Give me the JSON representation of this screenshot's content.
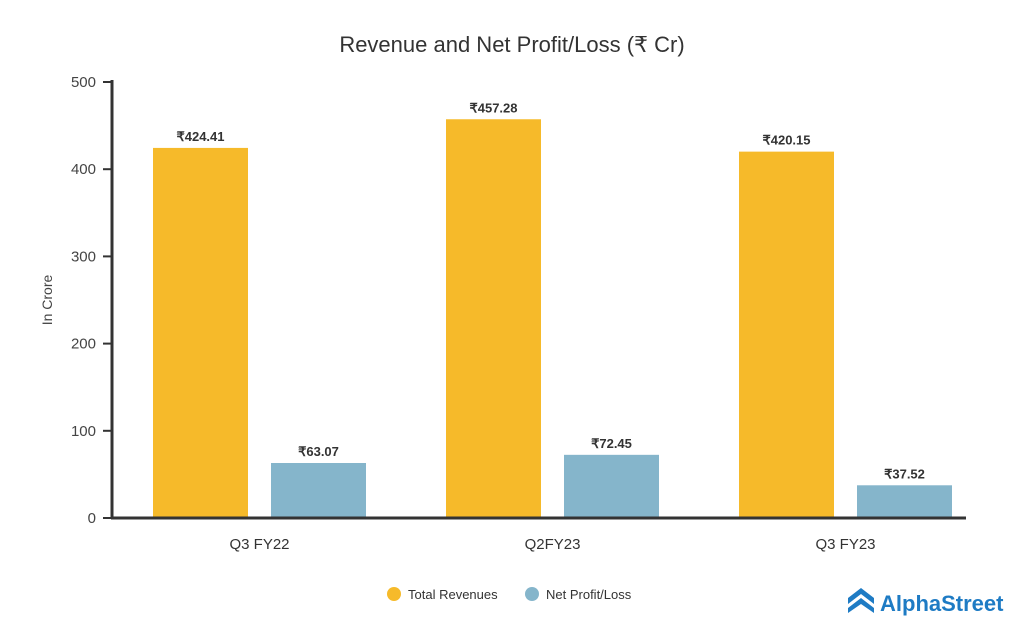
{
  "chart_data": {
    "type": "bar",
    "title": "Revenue and Net Profit/Loss (₹ Cr)",
    "xlabel": "",
    "ylabel": "In Crore",
    "ylim": [
      0,
      500
    ],
    "yticks": [
      0,
      100,
      200,
      300,
      400,
      500
    ],
    "categories": [
      "Q3 FY22",
      "Q2FY23",
      "Q3 FY23"
    ],
    "series": [
      {
        "name": "Total Revenues",
        "color": "#F6BA2A",
        "values": [
          424.41,
          457.28,
          420.15
        ],
        "labels": [
          "₹424.41",
          "₹457.28",
          "₹420.15"
        ]
      },
      {
        "name": "Net Profit/Loss",
        "color": "#85B5CB",
        "values": [
          63.07,
          72.45,
          37.52
        ],
        "labels": [
          "₹63.07",
          "₹72.45",
          "₹37.52"
        ]
      }
    ],
    "grid": false,
    "legend": "bottom-center"
  },
  "branding": {
    "logo_text": "AlphaStreet",
    "logo_color": "#1e7bc4"
  }
}
